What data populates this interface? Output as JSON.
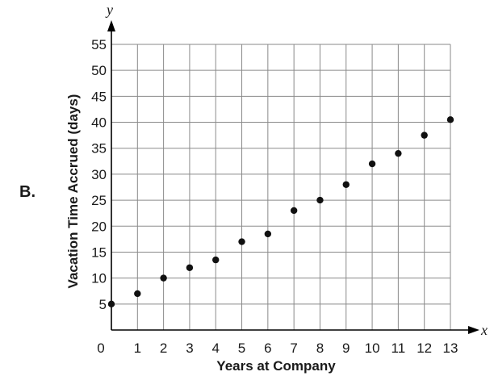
{
  "panel_label": "B.",
  "chart_data": {
    "type": "scatter",
    "title": "",
    "xlabel": "Years at Company",
    "ylabel": "Vacation Time Accrued (days)",
    "x_axis_var": "x",
    "y_axis_var": "y",
    "xlim": [
      0,
      13
    ],
    "ylim": [
      0,
      55
    ],
    "x_ticks": [
      0,
      1,
      2,
      3,
      4,
      5,
      6,
      7,
      8,
      9,
      10,
      11,
      12,
      13
    ],
    "y_ticks": [
      5,
      10,
      15,
      20,
      25,
      30,
      35,
      40,
      45,
      50,
      55
    ],
    "grid": true,
    "x": [
      0,
      1,
      2,
      3,
      4,
      5,
      6,
      7,
      8,
      9,
      10,
      11,
      12,
      13
    ],
    "y": [
      5,
      7,
      10,
      12,
      13.5,
      17,
      18.5,
      23,
      25,
      28,
      32,
      34,
      37.5,
      40.5
    ]
  }
}
